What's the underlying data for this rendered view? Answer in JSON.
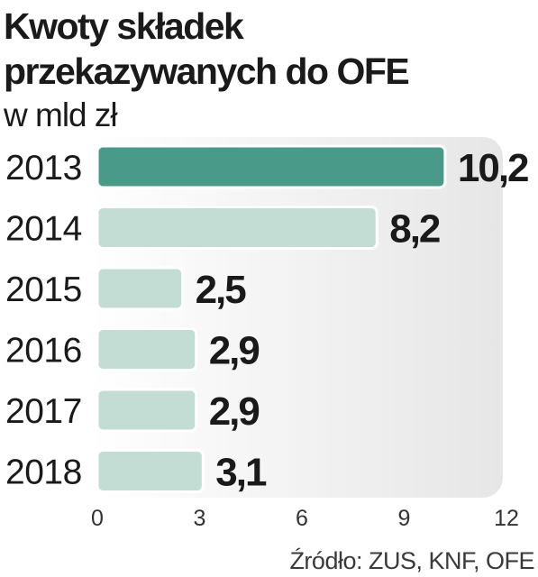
{
  "header": {
    "title_line1": "Kwoty składek",
    "title_line2": "przekazywanych do OFE",
    "subtitle": "w mld zł"
  },
  "source": "Źródło:  ZUS, KNF, OFE",
  "colors": {
    "highlight": "#4a9a8a",
    "bar": "#c3ddd5",
    "bar_stroke": "#ffffff",
    "plot_background": "#ececec"
  },
  "chart_data": {
    "type": "bar",
    "orientation": "horizontal",
    "title": "Kwoty składek przekazywanych do OFE",
    "subtitle": "w mld zł",
    "categories": [
      "2013",
      "2014",
      "2015",
      "2016",
      "2017",
      "2018"
    ],
    "values": [
      10.2,
      8.2,
      2.5,
      2.9,
      2.9,
      3.1
    ],
    "value_labels": [
      "10,2",
      "8,2",
      "2,5",
      "2,9",
      "2,9",
      "3,1"
    ],
    "highlight_index": 0,
    "xlim": [
      0,
      12
    ],
    "xticks": [
      0,
      3,
      6,
      9,
      12
    ],
    "xlabel": "",
    "ylabel": "",
    "grid": false,
    "legend": "none"
  }
}
